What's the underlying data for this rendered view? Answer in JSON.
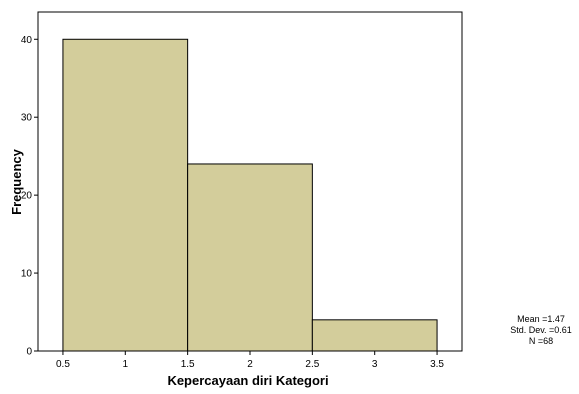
{
  "chart_data": {
    "type": "bar",
    "subtype": "histogram",
    "bins": [
      {
        "start": 0.5,
        "end": 1.5,
        "frequency": 40
      },
      {
        "start": 1.5,
        "end": 2.5,
        "frequency": 24
      },
      {
        "start": 2.5,
        "end": 3.5,
        "frequency": 4
      }
    ],
    "xlabel": "Kepercayaan diri Kategori",
    "ylabel": "Frequency",
    "xlim": [
      0.3,
      3.7
    ],
    "ylim": [
      0,
      43.5
    ],
    "x_ticks": [
      0.5,
      1,
      1.5,
      2,
      2.5,
      3,
      3.5
    ],
    "x_tick_labels": [
      "0.5",
      "1",
      "1.5",
      "2",
      "2.5",
      "3",
      "3.5"
    ],
    "y_ticks": [
      0,
      10,
      20,
      30,
      40
    ],
    "y_tick_labels": [
      "0",
      "10",
      "20",
      "30",
      "40"
    ],
    "grid": false,
    "bar_color": "#d3cd9b",
    "stats": {
      "mean": "Mean =1.47",
      "std_dev": "Std. Dev. =0.61",
      "n": "N =68"
    },
    "stats_placement": "right"
  }
}
